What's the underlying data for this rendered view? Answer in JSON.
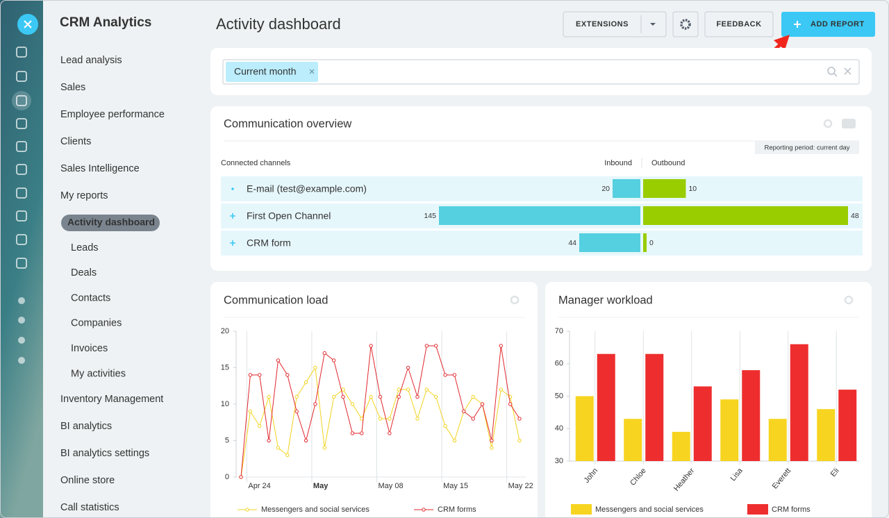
{
  "sidebar": {
    "title": "CRM Analytics",
    "menu": [
      "Lead analysis",
      "Sales",
      "Employee performance",
      "Clients",
      "Sales Intelligence",
      "My reports"
    ],
    "submenu": [
      "Activity dashboard",
      "Leads",
      "Deals",
      "Contacts",
      "Companies",
      "Invoices",
      "My activities"
    ],
    "menu_more": [
      "Inventory Management",
      "BI analytics",
      "BI analytics settings",
      "Online store",
      "Call statistics"
    ]
  },
  "header": {
    "title": "Activity dashboard",
    "buttons": {
      "extensions": "EXTENSIONS",
      "feedback": "FEEDBACK",
      "add_report": "ADD REPORT"
    }
  },
  "filter": {
    "tag": "Current month"
  },
  "communication_overview": {
    "title": "Communication overview",
    "period": "Reporting period: current day",
    "columns": {
      "channels": "Connected channels",
      "inbound": "Inbound",
      "outbound": "Outbound"
    },
    "rows": [
      {
        "name": "E-mail (test@example.com)",
        "inbound": 20,
        "outbound": 10
      },
      {
        "name": "First Open Channel",
        "inbound": 145,
        "outbound": 48
      },
      {
        "name": "CRM form",
        "inbound": 44,
        "outbound": 0
      }
    ]
  },
  "chart_data": [
    {
      "type": "line",
      "title": "Communication load",
      "categories": [
        null,
        "Apr 24",
        null,
        null,
        null,
        null,
        null,
        null,
        "May",
        null,
        null,
        null,
        null,
        null,
        null,
        "May 08",
        null,
        null,
        null,
        null,
        null,
        null,
        "May 15",
        null,
        null,
        null,
        null,
        null,
        null,
        "May 22",
        null
      ],
      "series": [
        {
          "name": "Messengers and social services",
          "color": "#f2d21c",
          "values": [
            0,
            9,
            7,
            11,
            4,
            3,
            11,
            13,
            15,
            4,
            11,
            12,
            10,
            8,
            11,
            8,
            8,
            12,
            12,
            8,
            12,
            11,
            7,
            5,
            9,
            11,
            10,
            4,
            12,
            11,
            5
          ]
        },
        {
          "name": "CRM forms",
          "color": "#e0262b",
          "values": [
            0,
            14,
            14,
            5,
            16,
            14,
            9,
            5,
            10,
            17,
            16,
            11,
            6,
            6,
            18,
            11,
            6,
            11,
            15,
            11,
            18,
            18,
            14,
            14,
            9,
            8,
            10,
            5,
            18,
            10,
            8
          ]
        }
      ],
      "ylim": [
        0,
        20
      ],
      "yticks": [
        0,
        5,
        10,
        15,
        20
      ]
    },
    {
      "type": "bar",
      "title": "Manager workload",
      "categories": [
        "John",
        "Chloe",
        "Heather",
        "Lisa",
        "Everett",
        "Eli"
      ],
      "series": [
        {
          "name": "Messengers and social services",
          "color": "#f7d420",
          "values": [
            50,
            43,
            39,
            49,
            43,
            46
          ]
        },
        {
          "name": "CRM forms",
          "color": "#ee2e2e",
          "values": [
            63,
            63,
            53,
            58,
            66,
            52
          ]
        }
      ],
      "ylim": [
        30,
        70
      ],
      "yticks": [
        30,
        40,
        50,
        60,
        70
      ]
    }
  ]
}
